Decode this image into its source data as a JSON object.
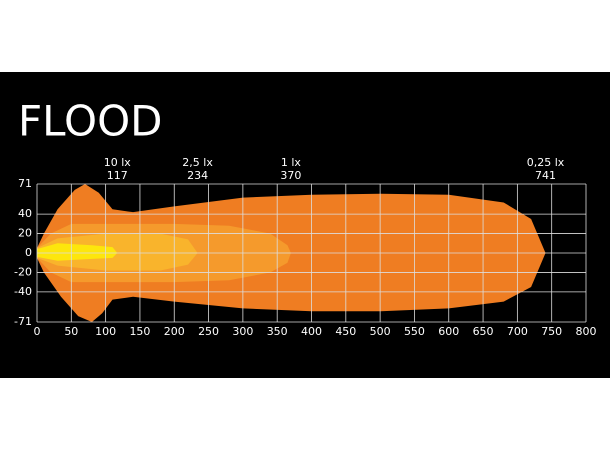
{
  "chart_data": {
    "type": "isolux",
    "title": "FLOOD",
    "xlim": [
      0,
      800
    ],
    "xticks": [
      0,
      50,
      100,
      150,
      200,
      250,
      300,
      350,
      400,
      450,
      500,
      550,
      600,
      650,
      700,
      750,
      800
    ],
    "ylim": [
      -71,
      71
    ],
    "yticks": [
      71,
      40,
      20,
      0,
      -20,
      -40,
      -71
    ],
    "grid": true,
    "series": [
      {
        "name": "0,25 lx",
        "distance": 741,
        "color": "#ef7d22",
        "x": [
          0,
          10,
          30,
          55,
          70,
          90,
          110,
          140,
          200,
          300,
          400,
          500,
          600,
          680,
          720,
          741,
          720,
          680,
          600,
          500,
          400,
          300,
          200,
          140,
          110,
          95,
          80,
          60,
          35,
          10,
          0
        ],
        "y": [
          5,
          20,
          45,
          65,
          71,
          62,
          45,
          42,
          48,
          57,
          60,
          61,
          60,
          52,
          35,
          0,
          -35,
          -50,
          -57,
          -60,
          -60,
          -57,
          -50,
          -45,
          -48,
          -62,
          -71,
          -65,
          -45,
          -20,
          -5
        ]
      },
      {
        "name": "1 lx",
        "distance": 370,
        "color": "#f59a2c",
        "x": [
          0,
          20,
          50,
          100,
          200,
          280,
          340,
          365,
          370,
          365,
          340,
          280,
          200,
          100,
          50,
          20,
          0
        ],
        "y": [
          5,
          20,
          30,
          30,
          30,
          28,
          20,
          8,
          0,
          -10,
          -20,
          -28,
          -30,
          -30,
          -30,
          -20,
          -5
        ]
      },
      {
        "name": "2,5 lx",
        "distance": 234,
        "color": "#f9b42c",
        "x": [
          0,
          30,
          100,
          180,
          220,
          234,
          220,
          180,
          100,
          30,
          0
        ],
        "y": [
          5,
          15,
          20,
          20,
          14,
          0,
          -12,
          -18,
          -18,
          -13,
          -5
        ]
      },
      {
        "name": "10 lx",
        "distance": 117,
        "color": "#fde60c",
        "x": [
          0,
          30,
          80,
          110,
          117,
          110,
          80,
          30,
          0
        ],
        "y": [
          4,
          10,
          8,
          6,
          0,
          -5,
          -6,
          -8,
          -4
        ]
      }
    ]
  }
}
